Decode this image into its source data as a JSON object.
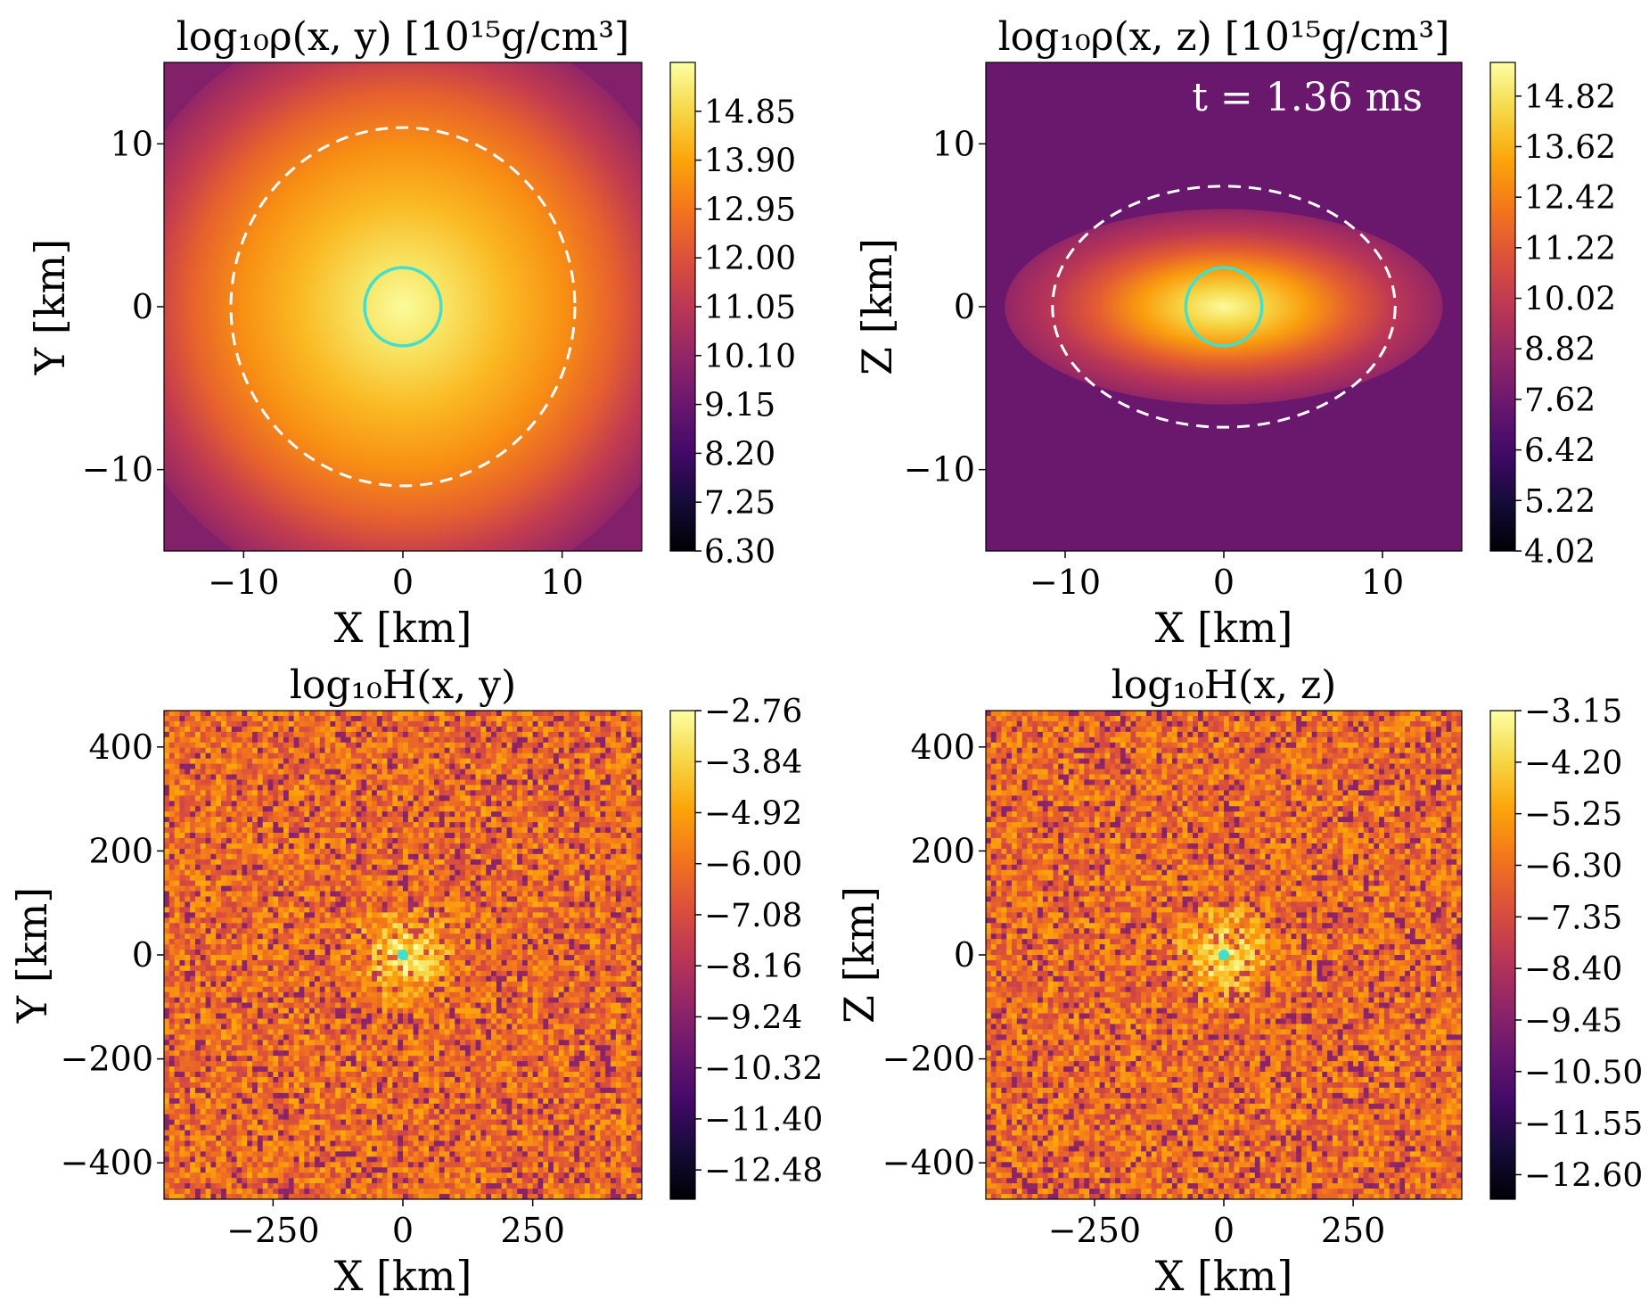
{
  "chart_data": [
    {
      "type": "heatmap",
      "title": "log₁₀ρ(x, y) [10¹⁵g/cm³]",
      "xlabel": "X [km]",
      "ylabel": "Y [km]",
      "xlim": [
        -15,
        15
      ],
      "ylim": [
        -15,
        15
      ],
      "xticks": [
        -10,
        0,
        10
      ],
      "xtick_labels": [
        "−10",
        "0",
        "10"
      ],
      "yticks": [
        -10,
        0,
        10
      ],
      "ytick_labels": [
        "−10",
        "0",
        "10"
      ],
      "colormap": "inferno",
      "colorbar": {
        "min": 6.3,
        "max": 15.8,
        "ticks": [
          6.3,
          7.25,
          8.2,
          9.15,
          10.1,
          11.05,
          12.0,
          12.95,
          13.9,
          14.85
        ],
        "tick_labels": [
          "6.30",
          "7.25",
          "8.20",
          "9.15",
          "10.10",
          "11.05",
          "12.00",
          "12.95",
          "13.90",
          "14.85"
        ]
      },
      "field": "radial",
      "annotation": "",
      "overlays": [
        {
          "shape": "circle",
          "center": [
            0,
            0
          ],
          "radius": 2.4,
          "style": "solid",
          "color": "#40e0d0"
        },
        {
          "shape": "ellipse",
          "center": [
            0,
            0
          ],
          "rx": 10.8,
          "ry": 11.0,
          "style": "dashed",
          "color": "#ffffff"
        }
      ]
    },
    {
      "type": "heatmap",
      "title": "log₁₀ρ(x, z) [10¹⁵g/cm³]",
      "xlabel": "X [km]",
      "ylabel": "Z [km]",
      "xlim": [
        -15,
        15
      ],
      "ylim": [
        -15,
        15
      ],
      "xticks": [
        -10,
        0,
        10
      ],
      "xtick_labels": [
        "−10",
        "0",
        "10"
      ],
      "yticks": [
        -10,
        0,
        10
      ],
      "ytick_labels": [
        "−10",
        "0",
        "10"
      ],
      "colormap": "inferno",
      "colorbar": {
        "min": 4.02,
        "max": 15.62,
        "ticks": [
          4.02,
          5.22,
          6.42,
          7.62,
          8.82,
          10.02,
          11.22,
          12.42,
          13.62,
          14.82
        ],
        "tick_labels": [
          "4.02",
          "5.22",
          "6.42",
          "7.62",
          "8.82",
          "10.02",
          "11.22",
          "12.42",
          "13.62",
          "14.82"
        ]
      },
      "field": "disk",
      "annotation": "t = 1.36 ms",
      "overlays": [
        {
          "shape": "circle",
          "center": [
            0,
            0
          ],
          "radius": 2.4,
          "style": "solid",
          "color": "#40e0d0"
        },
        {
          "shape": "ellipse",
          "center": [
            0,
            0
          ],
          "rx": 10.8,
          "ry": 7.4,
          "style": "dashed",
          "color": "#ffffff"
        }
      ]
    },
    {
      "type": "heatmap",
      "title": "log₁₀H(x, y)",
      "xlabel": "X [km]",
      "ylabel": "Y [km]",
      "xlim": [
        -460,
        460
      ],
      "ylim": [
        -470,
        470
      ],
      "xticks": [
        -250,
        0,
        250
      ],
      "xtick_labels": [
        "−250",
        "0",
        "250"
      ],
      "yticks": [
        -400,
        -200,
        0,
        200,
        400
      ],
      "ytick_labels": [
        "−400",
        "−200",
        "0",
        "200",
        "400"
      ],
      "colormap": "inferno",
      "colorbar": {
        "min": -13.1,
        "max": -2.76,
        "ticks": [
          -12.48,
          -11.4,
          -10.32,
          -9.24,
          -8.16,
          -7.08,
          -6.0,
          -4.92,
          -3.84,
          -2.76
        ],
        "tick_labels": [
          "−12.48",
          "−11.40",
          "−10.32",
          "−9.24",
          "−8.16",
          "−7.08",
          "−6.00",
          "−4.92",
          "−3.84",
          "−2.76"
        ]
      },
      "field": "noise",
      "annotation": "",
      "overlays": [
        {
          "shape": "dot",
          "center": [
            0,
            0
          ],
          "radius": 6,
          "style": "solid",
          "color": "#40e0d0"
        }
      ]
    },
    {
      "type": "heatmap",
      "title": "log₁₀H(x, z)",
      "xlabel": "X [km]",
      "ylabel": "Z [km]",
      "xlim": [
        -460,
        460
      ],
      "ylim": [
        -470,
        470
      ],
      "xticks": [
        -250,
        0,
        250
      ],
      "xtick_labels": [
        "−250",
        "0",
        "250"
      ],
      "yticks": [
        -400,
        -200,
        0,
        200,
        400
      ],
      "ytick_labels": [
        "−400",
        "−200",
        "0",
        "200",
        "400"
      ],
      "colormap": "inferno",
      "colorbar": {
        "min": -13.1,
        "max": -3.15,
        "ticks": [
          -12.6,
          -11.55,
          -10.5,
          -9.45,
          -8.4,
          -7.35,
          -6.3,
          -5.25,
          -4.2,
          -3.15
        ],
        "tick_labels": [
          "−12.60",
          "−11.55",
          "−10.50",
          "−9.45",
          "−8.40",
          "−7.35",
          "−6.30",
          "−5.25",
          "−4.20",
          "−3.15"
        ]
      },
      "field": "noise",
      "annotation": "",
      "overlays": [
        {
          "shape": "dot",
          "center": [
            0,
            0
          ],
          "radius": 6,
          "style": "solid",
          "color": "#40e0d0"
        }
      ]
    }
  ]
}
